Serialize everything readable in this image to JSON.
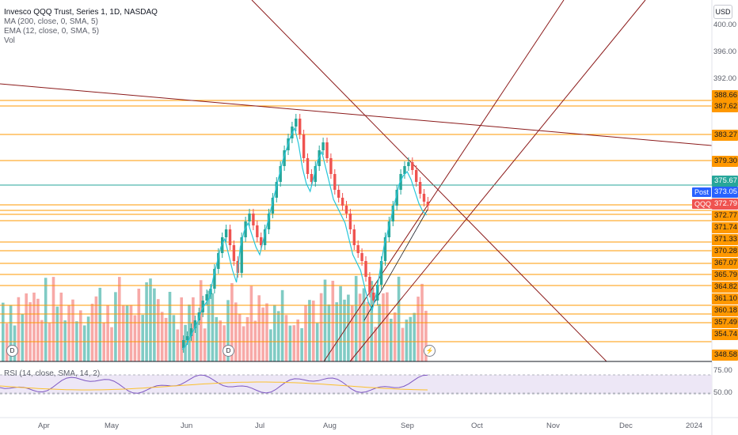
{
  "legend": {
    "symbol": "Invesco QQQ Trust, Series 1, 1D, NASDAQ",
    "ma": "MA (200, close, 0, SMA, 5)",
    "ema": "EMA (12, close, 0, SMA, 5)",
    "vol": "Vol"
  },
  "currency": "USD",
  "axis_ticks": [
    "400.00",
    "396.00",
    "392.00"
  ],
  "price_levels": [
    "388.66",
    "387.62",
    "383.27",
    "379.30",
    "372.77",
    "371.74",
    "371.33",
    "370.28",
    "367.07",
    "365.79",
    "364.82",
    "361.10",
    "360.18",
    "357.49",
    "354.74",
    "348.58"
  ],
  "post_label": "Post",
  "post_price": "373.05",
  "qqq_label": "QQQ",
  "qqq_price": "372.79",
  "teal_price": "375.67",
  "months": [
    "Apr",
    "May",
    "Jun",
    "Jul",
    "Aug",
    "Sep",
    "Oct",
    "Nov",
    "Dec",
    "2024"
  ],
  "dividend_marker": "D",
  "rsi_label": "RSI (14, close, SMA, 14, 2)",
  "rsi_ticks": [
    "75.00",
    "50.00"
  ],
  "colors": {
    "up": "#26a69a",
    "down": "#ef5350",
    "level": "#ff9800",
    "trend": "#8b1a1a",
    "ema": "#26c6da"
  }
}
